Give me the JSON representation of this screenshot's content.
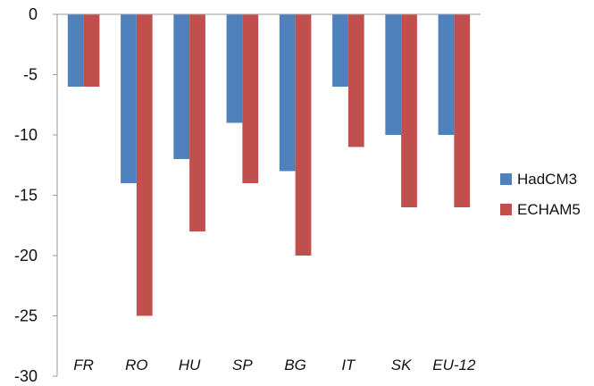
{
  "chart_data": {
    "type": "bar",
    "categories": [
      "FR",
      "RO",
      "HU",
      "SP",
      "BG",
      "IT",
      "SK",
      "EU-12"
    ],
    "series": [
      {
        "name": "HadCM3",
        "color": "#4f81bd",
        "values": [
          -6,
          -14,
          -12,
          -9,
          -13,
          -6,
          -10,
          -10
        ]
      },
      {
        "name": "ECHAM5",
        "color": "#c0504d",
        "values": [
          -6,
          -25,
          -18,
          -14,
          -20,
          -11,
          -16,
          -16
        ]
      }
    ],
    "ylim": [
      -30,
      0
    ],
    "yticks": [
      0,
      -5,
      -10,
      -15,
      -20,
      -25,
      -30
    ],
    "title": "",
    "xlabel": "",
    "ylabel": "",
    "grid": false,
    "legend_position": "right"
  }
}
